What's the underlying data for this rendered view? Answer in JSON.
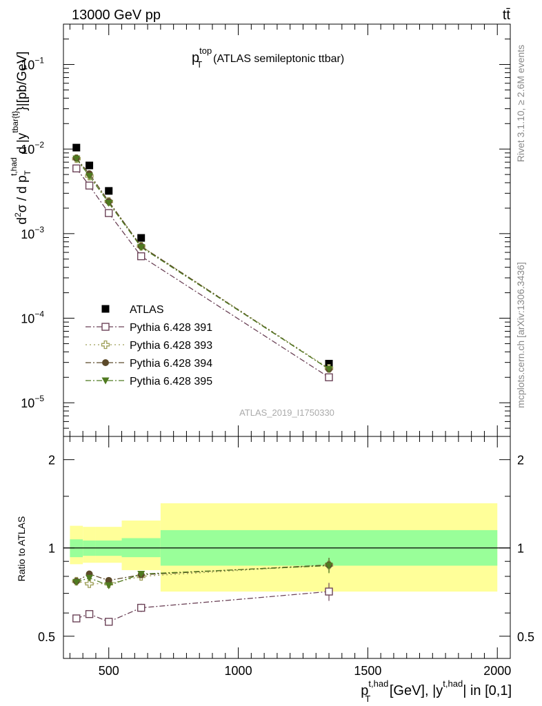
{
  "header": {
    "left": "13000 GeV pp",
    "right": "tt̄"
  },
  "side_labels": {
    "rivet": "Rivet 3.1.10, ≥ 2.6M events",
    "mcplots": "mcplots.cern.ch [arXiv:1306.3436]"
  },
  "chart_data": [
    {
      "type": "scatter",
      "title_main": "p",
      "title_sup": "top",
      "title_sub": "T",
      "title_rest": "(ATLAS semileptonic ttbar)",
      "watermark": "ATLAS_2019_I1750330",
      "ylabel": "d²σ / d p_T^{t,had} d |y^{tbar{t}}|[pb/GeV]",
      "yscale": "log",
      "ylim": [
        4e-06,
        0.3
      ],
      "xlim": [
        325,
        2050
      ],
      "y_ticks": [
        {
          "value": 1e-05,
          "base": "10",
          "exp": "−5"
        },
        {
          "value": 0.0001,
          "base": "10",
          "exp": "−4"
        },
        {
          "value": 0.001,
          "base": "10",
          "exp": "−3"
        },
        {
          "value": 0.01,
          "base": "10",
          "exp": "−2"
        },
        {
          "value": 0.1,
          "base": "10",
          "exp": "−1"
        }
      ],
      "legend_position": "lower-left",
      "series": [
        {
          "name": "ATLAS",
          "color": "#000000",
          "marker": "filled-square",
          "line": "none",
          "x": [
            375,
            425,
            500,
            625,
            1350
          ],
          "y": [
            0.0104,
            0.0064,
            0.0032,
            0.00089,
            2.9e-05
          ]
        },
        {
          "name": "Pythia 6.428 391",
          "color": "#6b4257",
          "marker": "open-square",
          "line": "dash-dot",
          "x": [
            375,
            425,
            500,
            625,
            1350
          ],
          "y": [
            0.0059,
            0.0037,
            0.00175,
            0.00054,
            2e-05
          ]
        },
        {
          "name": "Pythia 6.428 393",
          "color": "#9c9d55",
          "marker": "open-cross",
          "line": "dotted",
          "x": [
            375,
            425,
            500,
            625,
            1350
          ],
          "y": [
            0.0077,
            0.0048,
            0.0024,
            0.00071,
            2.55e-05
          ]
        },
        {
          "name": "Pythia 6.428 394",
          "color": "#5c4a2a",
          "marker": "filled-circle",
          "line": "dash-dot",
          "x": [
            375,
            425,
            500,
            625,
            1350
          ],
          "y": [
            0.0078,
            0.0051,
            0.0024,
            0.00071,
            2.5e-05
          ]
        },
        {
          "name": "Pythia 6.428 395",
          "color": "#4f7a20",
          "marker": "filled-triangle-down",
          "line": "dash-dot",
          "x": [
            375,
            425,
            500,
            625,
            1350
          ],
          "y": [
            0.0077,
            0.0048,
            0.0023,
            0.00069,
            2.5e-05
          ]
        }
      ]
    },
    {
      "type": "scatter",
      "ylabel": "Ratio to ATLAS",
      "xlabel_main": "p",
      "xlabel_sup": "t,had",
      "xlabel_sub": "T",
      "xlabel_mid": " [GeV], |y",
      "xlabel_sup2": "t,had",
      "xlabel_end": "| in [0,1]",
      "yscale": "log",
      "ylim": [
        0.42,
        2.4
      ],
      "xlim": [
        325,
        2050
      ],
      "y_ticks": [
        0.5,
        1,
        2
      ],
      "x_ticks": [
        500,
        1000,
        1500,
        2000
      ],
      "reference_line": 1,
      "bands": {
        "bins": [
          350,
          400,
          450,
          550,
          700,
          2000
        ],
        "green_lo": [
          0.93,
          0.94,
          0.94,
          0.93,
          0.87
        ],
        "green_hi": [
          1.07,
          1.06,
          1.06,
          1.08,
          1.15
        ],
        "yellow_lo": [
          0.88,
          0.89,
          0.89,
          0.84,
          0.71
        ],
        "yellow_hi": [
          1.19,
          1.18,
          1.18,
          1.24,
          1.42
        ],
        "green_color": "#99ff99",
        "yellow_color": "#ffff99"
      },
      "series": [
        {
          "name": "Pythia 6.428 391",
          "color": "#6b4257",
          "marker": "open-square",
          "line": "dash-dot",
          "x": [
            375,
            425,
            500,
            625,
            1350
          ],
          "y": [
            0.575,
            0.595,
            0.56,
            0.625,
            0.71
          ],
          "err": [
            0.01,
            0.01,
            0.01,
            0.02,
            0.05
          ]
        },
        {
          "name": "Pythia 6.428 393",
          "color": "#9c9d55",
          "marker": "open-cross",
          "line": "dotted",
          "x": [
            375,
            425,
            500,
            625,
            1350
          ],
          "y": [
            0.77,
            0.755,
            0.755,
            0.8,
            0.875
          ],
          "err": [
            0.01,
            0.01,
            0.02,
            0.02,
            0.05
          ]
        },
        {
          "name": "Pythia 6.428 394",
          "color": "#5c4a2a",
          "marker": "filled-circle",
          "line": "dash-dot",
          "x": [
            375,
            425,
            500,
            625,
            1350
          ],
          "y": [
            0.77,
            0.815,
            0.775,
            0.81,
            0.875
          ],
          "err": [
            0.01,
            0.01,
            0.02,
            0.02,
            0.05
          ]
        },
        {
          "name": "Pythia 6.428 395",
          "color": "#4f7a20",
          "marker": "filled-triangle-down",
          "line": "dash-dot",
          "x": [
            375,
            425,
            500,
            625,
            1350
          ],
          "y": [
            0.765,
            0.79,
            0.745,
            0.815,
            0.87
          ],
          "err": [
            0.01,
            0.01,
            0.02,
            0.02,
            0.05
          ]
        }
      ]
    }
  ]
}
